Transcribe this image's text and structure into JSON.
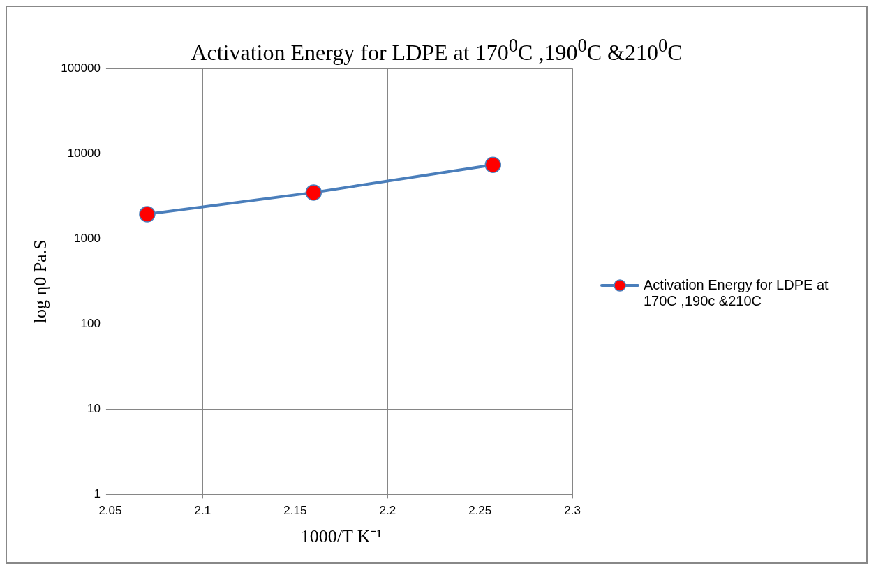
{
  "chart_data": {
    "type": "line",
    "title": "Activation Energy for LDPE at 170$^{0}$C ,190$^{0}$C &210$^{0}$C",
    "xlabel": "1000/T K⁻¹",
    "ylabel": "log η0 Pa.S",
    "x": [
      2.07,
      2.16,
      2.257
    ],
    "series": [
      {
        "name": "Activation Energy for LDPE at 170C ,190c &210C",
        "color": "#4a7ebb",
        "colors": [
          "#ff0000",
          "#ff0000",
          "#ff0000"
        ],
        "values": [
          1950,
          3500,
          7400
        ]
      }
    ],
    "xlim": [
      2.05,
      2.3
    ],
    "xticks": [
      2.05,
      2.1,
      2.15,
      2.2,
      2.25,
      2.3
    ],
    "ylim": [
      1,
      100000
    ],
    "yticks": [
      1,
      10,
      100,
      1000,
      10000,
      100000
    ],
    "log": "y",
    "grid": true,
    "legend": "right",
    "marker": "circle",
    "line_style": "solid"
  }
}
